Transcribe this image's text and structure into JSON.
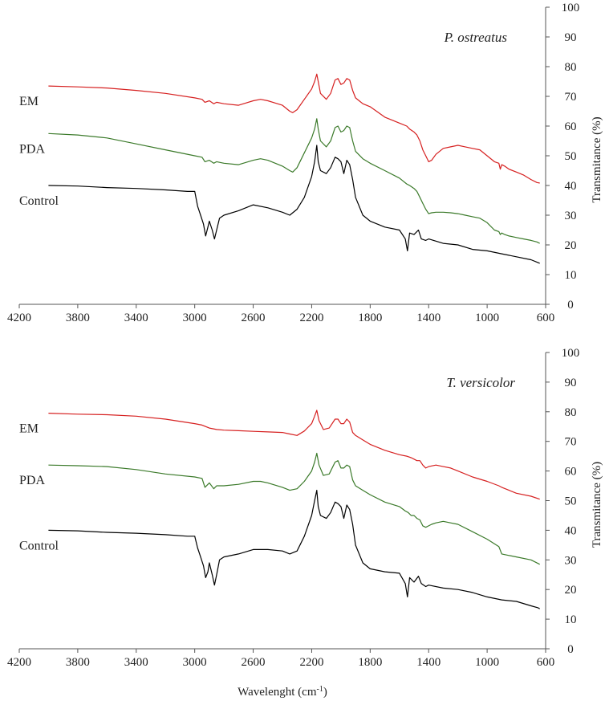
{
  "chart_data": [
    {
      "type": "line",
      "title": "P. ostreatus",
      "xlabel": "",
      "ylabel": "Transmitance  (%)",
      "xlim": [
        4200,
        600
      ],
      "ylim": [
        0,
        100
      ],
      "x_ticks": [
        "4200",
        "3800",
        "3400",
        "3000",
        "2600",
        "2200",
        "1800",
        "1400",
        "1000",
        "600"
      ],
      "y_ticks": [
        "0",
        "10",
        "20",
        "30",
        "40",
        "50",
        "60",
        "70",
        "80",
        "90",
        "100"
      ],
      "series": [
        {
          "name": "EM",
          "color": "#d62020",
          "label_x": 3850,
          "x": [
            4000,
            3800,
            3600,
            3400,
            3200,
            3000,
            2950,
            2930,
            2900,
            2870,
            2850,
            2800,
            2700,
            2600,
            2550,
            2500,
            2400,
            2350,
            2330,
            2300,
            2250,
            2200,
            2180,
            2165,
            2155,
            2140,
            2100,
            2070,
            2040,
            2020,
            2000,
            1980,
            1960,
            1940,
            1920,
            1900,
            1850,
            1800,
            1700,
            1600,
            1550,
            1530,
            1500,
            1480,
            1460,
            1440,
            1420,
            1400,
            1380,
            1350,
            1300,
            1250,
            1200,
            1150,
            1100,
            1050,
            1000,
            950,
            920,
            910,
            900,
            880,
            850,
            800,
            750,
            700,
            660,
            640
          ],
          "y": [
            73.5,
            73.2,
            72.8,
            72,
            71,
            69.5,
            69,
            68,
            68.5,
            67.5,
            68,
            67.5,
            67,
            68.5,
            69,
            68.5,
            67,
            65,
            64.5,
            65.5,
            69,
            72.5,
            75,
            77.5,
            75,
            71,
            69,
            71,
            75.5,
            76,
            74,
            74.5,
            76,
            75.5,
            72,
            69.5,
            67.5,
            66.5,
            63,
            61,
            60,
            59,
            58,
            57,
            55,
            52,
            50,
            48,
            48.5,
            50.5,
            52.5,
            53,
            53.5,
            53,
            52.5,
            52,
            50,
            48,
            47.5,
            45.5,
            47,
            46.5,
            45.5,
            44.5,
            43.5,
            42,
            41,
            40.8
          ]
        },
        {
          "name": "PDA",
          "color": "#3b7a2a",
          "label_x": 3850,
          "x": [
            4000,
            3800,
            3600,
            3400,
            3200,
            3000,
            2950,
            2930,
            2900,
            2870,
            2850,
            2800,
            2700,
            2600,
            2550,
            2500,
            2400,
            2350,
            2330,
            2300,
            2250,
            2200,
            2180,
            2165,
            2155,
            2140,
            2100,
            2070,
            2040,
            2020,
            2000,
            1980,
            1960,
            1940,
            1920,
            1900,
            1850,
            1800,
            1700,
            1600,
            1550,
            1530,
            1500,
            1480,
            1460,
            1440,
            1420,
            1400,
            1380,
            1350,
            1300,
            1250,
            1200,
            1150,
            1100,
            1050,
            1000,
            950,
            920,
            910,
            900,
            880,
            850,
            800,
            750,
            700,
            660,
            640
          ],
          "y": [
            57.5,
            57,
            56,
            54,
            52,
            50,
            49.5,
            48,
            48.5,
            47.5,
            48,
            47.5,
            47,
            48.5,
            49,
            48.5,
            46.5,
            45,
            44.5,
            46,
            51,
            56,
            59,
            62.5,
            59,
            55,
            53,
            55,
            59.5,
            60,
            58,
            58.5,
            60,
            59.5,
            55,
            51.5,
            49,
            47.5,
            45,
            42.5,
            40.5,
            40,
            39,
            38,
            36,
            34,
            32,
            30.5,
            30.8,
            31,
            31,
            30.8,
            30.5,
            30,
            29.5,
            29,
            27.5,
            25,
            24.5,
            23.5,
            24,
            23.5,
            23,
            22.5,
            22,
            21.5,
            21,
            20.5
          ]
        },
        {
          "name": "Control",
          "color": "#000000",
          "label_x": 3850,
          "x": [
            4000,
            3800,
            3600,
            3400,
            3200,
            3050,
            3000,
            2980,
            2960,
            2940,
            2925,
            2910,
            2900,
            2880,
            2865,
            2850,
            2830,
            2800,
            2700,
            2600,
            2500,
            2400,
            2350,
            2300,
            2250,
            2200,
            2180,
            2165,
            2155,
            2140,
            2100,
            2070,
            2040,
            2020,
            2000,
            1980,
            1960,
            1940,
            1920,
            1900,
            1850,
            1800,
            1700,
            1600,
            1560,
            1545,
            1530,
            1500,
            1470,
            1450,
            1420,
            1400,
            1300,
            1200,
            1100,
            1000,
            900,
            800,
            700,
            650,
            640
          ],
          "y": [
            40,
            39.8,
            39.3,
            39,
            38.5,
            38,
            38,
            33,
            30,
            27,
            23,
            26,
            28,
            25,
            22,
            25,
            29,
            30,
            31.5,
            33.5,
            32.5,
            31,
            30,
            32,
            36,
            43,
            48,
            53.5,
            48,
            45,
            44,
            46,
            49.5,
            49,
            48,
            44,
            48.5,
            47,
            42,
            36,
            30,
            28,
            26,
            25,
            22,
            18,
            24,
            23.5,
            25,
            22,
            21.5,
            22,
            20.5,
            20,
            18.5,
            18,
            17,
            16,
            15,
            14,
            13.8
          ]
        }
      ]
    },
    {
      "type": "line",
      "title": "T. versicolor",
      "xlabel": "Wavelenght  (cm-1)",
      "ylabel": "Transmitance  (%)",
      "xlim": [
        4200,
        600
      ],
      "ylim": [
        0,
        100
      ],
      "x_ticks": [
        "4200",
        "3800",
        "3400",
        "3000",
        "2600",
        "2200",
        "1800",
        "1400",
        "1000",
        "600"
      ],
      "y_ticks": [
        "0",
        "10",
        "20",
        "30",
        "40",
        "50",
        "60",
        "70",
        "80",
        "90",
        "100"
      ],
      "series": [
        {
          "name": "EM",
          "color": "#d62020",
          "label_x": 3850,
          "x": [
            4000,
            3800,
            3600,
            3400,
            3200,
            3000,
            2950,
            2900,
            2850,
            2800,
            2700,
            2600,
            2500,
            2400,
            2350,
            2300,
            2250,
            2200,
            2180,
            2165,
            2150,
            2120,
            2080,
            2040,
            2020,
            2000,
            1980,
            1960,
            1940,
            1920,
            1900,
            1850,
            1800,
            1700,
            1600,
            1550,
            1520,
            1500,
            1480,
            1460,
            1440,
            1420,
            1400,
            1350,
            1300,
            1250,
            1200,
            1100,
            1000,
            920,
            900,
            850,
            800,
            700,
            640
          ],
          "y": [
            79.5,
            79.2,
            79,
            78.5,
            77.5,
            76,
            75.5,
            74.5,
            74,
            73.8,
            73.6,
            73.4,
            73.2,
            73,
            72.5,
            72,
            73.5,
            76,
            78.5,
            80.5,
            77,
            74,
            74.5,
            77.5,
            77.5,
            76,
            76,
            77.5,
            76.5,
            73,
            72,
            70.5,
            69,
            67,
            65.5,
            65,
            64.5,
            64,
            63.5,
            63.5,
            62,
            61,
            61.5,
            62,
            61.5,
            61,
            60,
            58,
            56.5,
            55,
            54.5,
            53.5,
            52.5,
            51.5,
            50.5
          ]
        },
        {
          "name": "PDA",
          "color": "#3b7a2a",
          "label_x": 3850,
          "x": [
            4000,
            3800,
            3600,
            3400,
            3200,
            3000,
            2950,
            2930,
            2900,
            2870,
            2850,
            2800,
            2700,
            2600,
            2550,
            2500,
            2400,
            2350,
            2300,
            2250,
            2200,
            2180,
            2165,
            2150,
            2120,
            2080,
            2040,
            2020,
            2000,
            1980,
            1960,
            1940,
            1920,
            1900,
            1850,
            1800,
            1700,
            1600,
            1560,
            1540,
            1520,
            1500,
            1480,
            1460,
            1440,
            1420,
            1400,
            1380,
            1350,
            1300,
            1250,
            1200,
            1100,
            1000,
            920,
            900,
            850,
            800,
            700,
            640
          ],
          "y": [
            62,
            61.8,
            61.5,
            60.5,
            59,
            58,
            57.5,
            54.5,
            56,
            54,
            55,
            55,
            55.5,
            56.5,
            56.5,
            56,
            54.5,
            53.5,
            54,
            56.5,
            60,
            63,
            66,
            62,
            58.5,
            59,
            63,
            63.5,
            61,
            61,
            62,
            61.5,
            57,
            55,
            53.5,
            52,
            49.5,
            48,
            46.5,
            46,
            45,
            45,
            44,
            43.5,
            41.5,
            41,
            41.5,
            42,
            42.5,
            43,
            42.5,
            42,
            39.5,
            37,
            34.5,
            32,
            31.5,
            31,
            30,
            28.5
          ]
        },
        {
          "name": "Control",
          "color": "#000000",
          "label_x": 3850,
          "x": [
            4000,
            3800,
            3600,
            3400,
            3200,
            3050,
            3000,
            2980,
            2960,
            2940,
            2925,
            2910,
            2900,
            2880,
            2865,
            2850,
            2830,
            2800,
            2700,
            2600,
            2500,
            2400,
            2350,
            2300,
            2250,
            2200,
            2180,
            2165,
            2155,
            2140,
            2100,
            2070,
            2040,
            2020,
            2000,
            1980,
            1960,
            1940,
            1920,
            1900,
            1850,
            1800,
            1700,
            1600,
            1560,
            1545,
            1530,
            1500,
            1470,
            1450,
            1420,
            1400,
            1300,
            1200,
            1100,
            1000,
            900,
            800,
            700,
            650,
            640
          ],
          "y": [
            40,
            39.8,
            39.3,
            39,
            38.5,
            38,
            38,
            34,
            31,
            28,
            24,
            26,
            29,
            25,
            21.5,
            25,
            30,
            31,
            32,
            33.5,
            33.5,
            33,
            32,
            33,
            38,
            45,
            50,
            53.5,
            48,
            45,
            44,
            46,
            49.5,
            49,
            48,
            44,
            48.5,
            47,
            42,
            35,
            29,
            27,
            26,
            25.5,
            22,
            17.5,
            24,
            22.5,
            24.5,
            22,
            21,
            21.5,
            20.5,
            20,
            19,
            17.5,
            16.5,
            16,
            14.5,
            13.8,
            13.5
          ]
        }
      ]
    }
  ]
}
